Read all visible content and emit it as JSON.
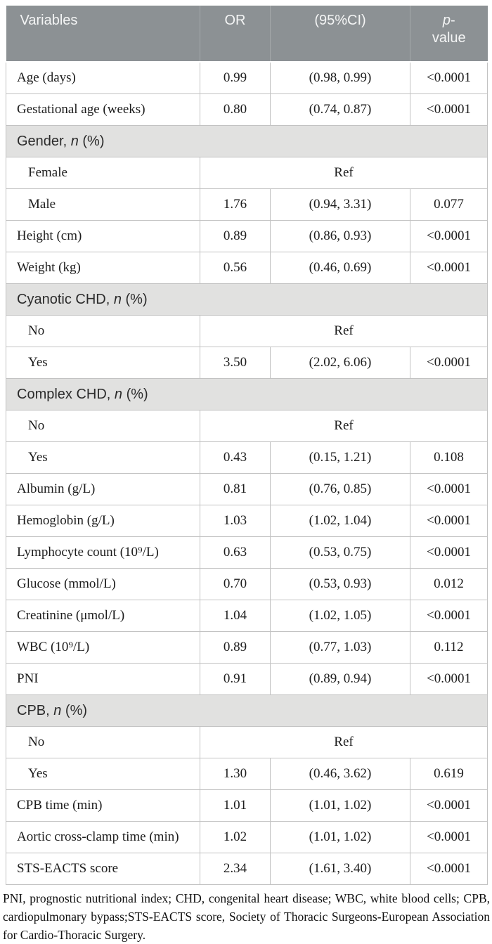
{
  "table": {
    "header": {
      "variables": "Variables",
      "or": "OR",
      "ci": "(95%CI)",
      "p_italic": "p",
      "p_dash": "-",
      "p_line2": "value"
    },
    "rows": [
      {
        "type": "data",
        "label": "Age (days)",
        "or": "0.99",
        "ci": "(0.98, 0.99)",
        "p": "<0.0001",
        "indent": false
      },
      {
        "type": "data",
        "label": "Gestational age (weeks)",
        "or": "0.80",
        "ci": "(0.74, 0.87)",
        "p": "<0.0001",
        "indent": false
      },
      {
        "type": "section",
        "pre": "Gender, ",
        "italic": "n",
        "post": " (%)"
      },
      {
        "type": "ref",
        "label": "Female",
        "ref": "Ref",
        "indent": true
      },
      {
        "type": "data",
        "label": "Male",
        "or": "1.76",
        "ci": "(0.94, 3.31)",
        "p": "0.077",
        "indent": true
      },
      {
        "type": "data",
        "label": "Height (cm)",
        "or": "0.89",
        "ci": "(0.86, 0.93)",
        "p": "<0.0001",
        "indent": false
      },
      {
        "type": "data",
        "label": "Weight (kg)",
        "or": "0.56",
        "ci": "(0.46, 0.69)",
        "p": "<0.0001",
        "indent": false
      },
      {
        "type": "section",
        "pre": "Cyanotic CHD, ",
        "italic": "n",
        "post": " (%)"
      },
      {
        "type": "ref",
        "label": "No",
        "ref": "Ref",
        "indent": true
      },
      {
        "type": "data",
        "label": "Yes",
        "or": "3.50",
        "ci": "(2.02, 6.06)",
        "p": "<0.0001",
        "indent": true
      },
      {
        "type": "section",
        "pre": "Complex CHD, ",
        "italic": "n",
        "post": " (%)"
      },
      {
        "type": "ref",
        "label": "No",
        "ref": "Ref",
        "indent": true
      },
      {
        "type": "data",
        "label": "Yes",
        "or": "0.43",
        "ci": "(0.15, 1.21)",
        "p": "0.108",
        "indent": true
      },
      {
        "type": "data",
        "label": "Albumin (g/L)",
        "or": "0.81",
        "ci": "(0.76, 0.85)",
        "p": "<0.0001",
        "indent": false
      },
      {
        "type": "data",
        "label": "Hemoglobin (g/L)",
        "or": "1.03",
        "ci": "(1.02, 1.04)",
        "p": "<0.0001",
        "indent": false
      },
      {
        "type": "data",
        "label": "Lymphocyte count (10⁹/L)",
        "or": "0.63",
        "ci": "(0.53, 0.75)",
        "p": "<0.0001",
        "indent": false
      },
      {
        "type": "data",
        "label": "Glucose (mmol/L)",
        "or": "0.70",
        "ci": "(0.53, 0.93)",
        "p": "0.012",
        "indent": false
      },
      {
        "type": "data",
        "label": "Creatinine (μmol/L)",
        "or": "1.04",
        "ci": "(1.02, 1.05)",
        "p": "<0.0001",
        "indent": false
      },
      {
        "type": "data",
        "label": "WBC (10⁹/L)",
        "or": "0.89",
        "ci": "(0.77, 1.03)",
        "p": "0.112",
        "indent": false
      },
      {
        "type": "data",
        "label": "PNI",
        "or": "0.91",
        "ci": "(0.89, 0.94)",
        "p": "<0.0001",
        "indent": false
      },
      {
        "type": "section",
        "pre": "CPB, ",
        "italic": "n",
        "post": " (%)"
      },
      {
        "type": "ref",
        "label": "No",
        "ref": "Ref",
        "indent": true
      },
      {
        "type": "data",
        "label": "Yes",
        "or": "1.30",
        "ci": "(0.46, 3.62)",
        "p": "0.619",
        "indent": true
      },
      {
        "type": "data",
        "label": "CPB time (min)",
        "or": "1.01",
        "ci": "(1.01, 1.02)",
        "p": "<0.0001",
        "indent": false
      },
      {
        "type": "data",
        "label": "Aortic cross-clamp time (min)",
        "or": "1.02",
        "ci": "(1.01, 1.02)",
        "p": "<0.0001",
        "indent": false
      },
      {
        "type": "data",
        "label": "STS-EACTS score",
        "or": "2.34",
        "ci": "(1.61, 3.40)",
        "p": "<0.0001",
        "indent": false
      }
    ]
  },
  "footnote": "PNI, prognostic nutritional index; CHD, congenital heart disease; WBC, white blood cells; CPB, cardiopulmonary bypass;STS-EACTS score, Society of Thoracic Surgeons-European Association for Cardio-Thoracic Surgery.",
  "colors": {
    "header_bg": "#8c9194",
    "header_text": "#f4f5f5",
    "section_bg": "#e1e1e0",
    "cell_border": "#c2c2c2",
    "body_text": "#1c1c1c"
  }
}
